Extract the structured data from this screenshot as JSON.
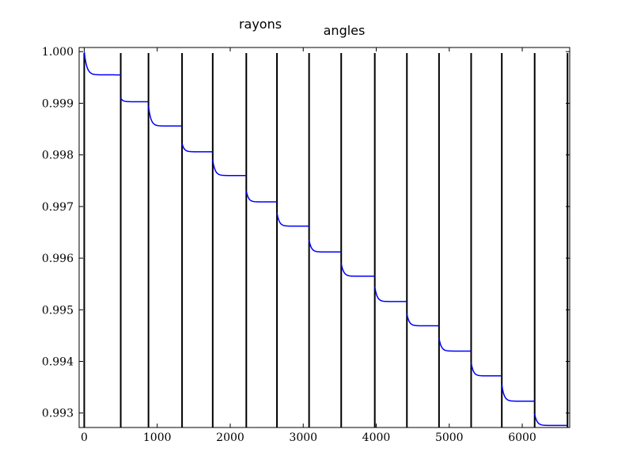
{
  "chart_data": {
    "type": "line",
    "labels": [
      "rayons",
      "angles"
    ],
    "xlim": [
      -70,
      6650
    ],
    "ylim": [
      0.99272,
      1.00008
    ],
    "xticks": [
      0,
      1000,
      2000,
      3000,
      4000,
      5000,
      6000
    ],
    "xtick_labels": [
      "0",
      "1000",
      "2000",
      "3000",
      "4000",
      "5000",
      "6000"
    ],
    "yticks": [
      0.993,
      0.994,
      0.995,
      0.996,
      0.997,
      0.998,
      0.999,
      1.0
    ],
    "ytick_labels": [
      "0.993",
      "0.994",
      "0.995",
      "0.996",
      "0.997",
      "0.998",
      "0.999",
      "1.000"
    ],
    "grid": false,
    "vertical_lines_x": [
      0,
      500,
      880,
      1340,
      1760,
      2220,
      2640,
      3080,
      3520,
      3980,
      4420,
      4860,
      5300,
      5720,
      6170,
      6620
    ],
    "series": [
      {
        "color": "#0000ff",
        "segments": [
          {
            "x_start": 0,
            "x_end": 500,
            "y_start": 1.0,
            "y_end": 0.99955
          },
          {
            "x_start": 500,
            "x_end": 880,
            "y_start": 0.9991,
            "y_end": 0.99903
          },
          {
            "x_start": 880,
            "x_end": 1340,
            "y_start": 0.99895,
            "y_end": 0.99856
          },
          {
            "x_start": 1340,
            "x_end": 1760,
            "y_start": 0.99822,
            "y_end": 0.99806
          },
          {
            "x_start": 1760,
            "x_end": 2220,
            "y_start": 0.9979,
            "y_end": 0.9976
          },
          {
            "x_start": 2220,
            "x_end": 2640,
            "y_start": 0.9973,
            "y_end": 0.99709
          },
          {
            "x_start": 2640,
            "x_end": 3080,
            "y_start": 0.99688,
            "y_end": 0.99662
          },
          {
            "x_start": 3080,
            "x_end": 3520,
            "y_start": 0.99635,
            "y_end": 0.99612
          },
          {
            "x_start": 3520,
            "x_end": 3980,
            "y_start": 0.9959,
            "y_end": 0.99565
          },
          {
            "x_start": 3980,
            "x_end": 4420,
            "y_start": 0.99545,
            "y_end": 0.99516
          },
          {
            "x_start": 4420,
            "x_end": 4860,
            "y_start": 0.99492,
            "y_end": 0.99469
          },
          {
            "x_start": 4860,
            "x_end": 5300,
            "y_start": 0.99445,
            "y_end": 0.9942
          },
          {
            "x_start": 5300,
            "x_end": 5720,
            "y_start": 0.99398,
            "y_end": 0.99372
          },
          {
            "x_start": 5720,
            "x_end": 6170,
            "y_start": 0.99355,
            "y_end": 0.99323
          },
          {
            "x_start": 6170,
            "x_end": 6620,
            "y_start": 0.99298,
            "y_end": 0.99276
          }
        ]
      }
    ],
    "vertical_line_color": "#000000"
  }
}
